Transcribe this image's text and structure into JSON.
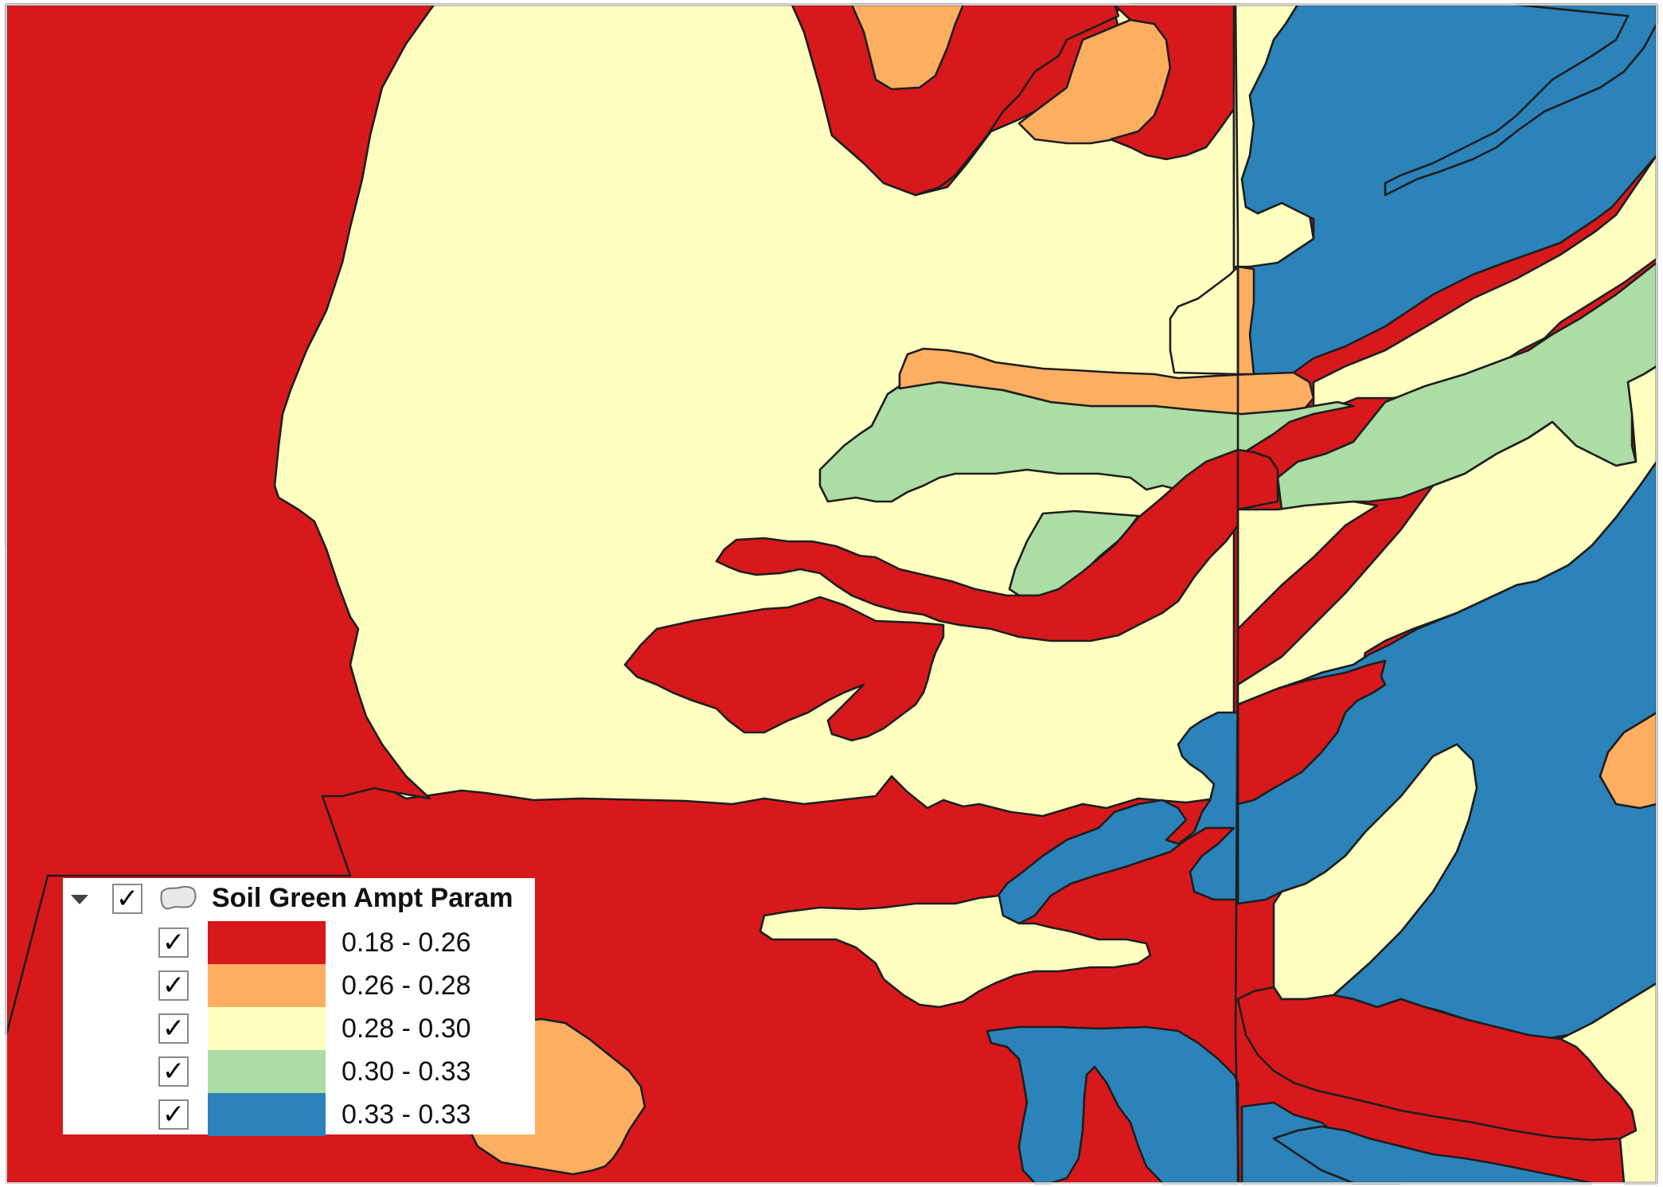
{
  "legend": {
    "layer_title": "Soil Green Ampt Param",
    "layer_checked": "✓",
    "classes": [
      {
        "label": "0.18 - 0.26",
        "color": "#d7191c",
        "checked": "✓"
      },
      {
        "label": "0.26 - 0.28",
        "color": "#fdae61",
        "checked": "✓"
      },
      {
        "label": "0.28 - 0.30",
        "color": "#ffffc0",
        "checked": "✓"
      },
      {
        "label": "0.30 - 0.33",
        "color": "#abdda4",
        "checked": "✓"
      },
      {
        "label": "0.33 - 0.33",
        "color": "#2b83ba",
        "checked": "✓"
      }
    ]
  },
  "icons": {
    "expander": "collapse-arrow-icon",
    "layer": "polygon-layer-icon",
    "check": "checkmark-icon"
  }
}
